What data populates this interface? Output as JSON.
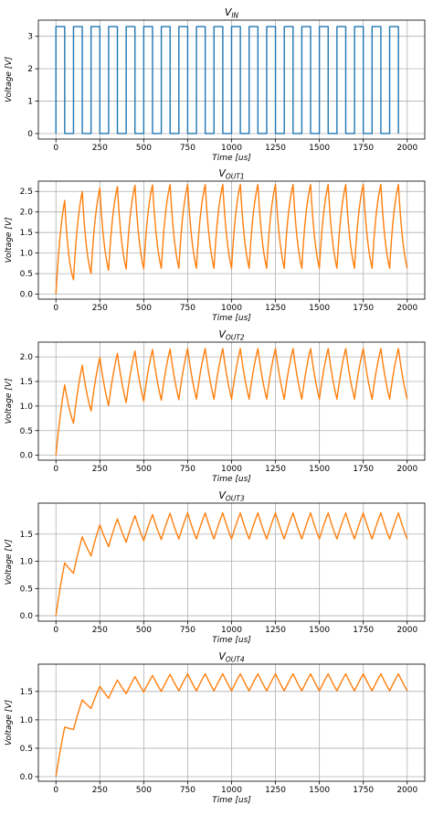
{
  "chart_data": [
    {
      "type": "line",
      "title_main": "V",
      "title_sub": "IN",
      "xlabel": "Time [us]",
      "ylabel": "Voltage [V]",
      "xlim": [
        -100,
        2100
      ],
      "ylim": [
        -0.17,
        3.5
      ],
      "xticks": [
        0,
        250,
        500,
        750,
        1000,
        1250,
        1500,
        1750,
        2000
      ],
      "yticks": [
        0,
        1,
        2,
        3
      ],
      "ytick_labels": [
        "0",
        "1",
        "2",
        "3"
      ],
      "grid": true,
      "series": [
        {
          "color": "#1f77b4",
          "kind": "square",
          "high": 3.3,
          "low": 0,
          "period_us": 100,
          "high_time_us": 50,
          "x_end": 1950
        }
      ]
    },
    {
      "type": "line",
      "title_main": "V",
      "title_sub": "OUT1",
      "xlabel": "Time [us]",
      "ylabel": "Voltage [V]",
      "xlim": [
        -100,
        2100
      ],
      "ylim": [
        -0.12,
        2.75
      ],
      "xticks": [
        0,
        250,
        500,
        750,
        1000,
        1250,
        1500,
        1750,
        2000
      ],
      "yticks": [
        0,
        0.5,
        1.0,
        1.5,
        2.0,
        2.5
      ],
      "ytick_labels": [
        "0.0",
        "0.5",
        "1.0",
        "1.5",
        "2.0",
        "2.5"
      ],
      "grid": true,
      "series": [
        {
          "color": "#ff7f0e",
          "kind": "rc",
          "period_us": 100,
          "high_time_us": 50,
          "vin": 3.3,
          "x_end": 2000,
          "peaks": [
            2.28,
            2.5,
            2.58,
            2.62,
            2.65,
            2.66,
            2.67,
            2.67,
            2.67,
            2.67,
            2.67,
            2.67,
            2.67,
            2.67,
            2.67,
            2.67,
            2.67,
            2.67,
            2.67,
            2.67
          ],
          "troughs": [
            0.35,
            0.5,
            0.58,
            0.61,
            0.62,
            0.63,
            0.63,
            0.63,
            0.63,
            0.63,
            0.63,
            0.63,
            0.63,
            0.63,
            0.63,
            0.63,
            0.63,
            0.63,
            0.63,
            0.63
          ]
        }
      ]
    },
    {
      "type": "line",
      "title_main": "V",
      "title_sub": "OUT2",
      "xlabel": "Time [us]",
      "ylabel": "Voltage [V]",
      "xlim": [
        -100,
        2100
      ],
      "ylim": [
        -0.1,
        2.3
      ],
      "xticks": [
        0,
        250,
        500,
        750,
        1000,
        1250,
        1500,
        1750,
        2000
      ],
      "yticks": [
        0,
        0.5,
        1.0,
        1.5,
        2.0
      ],
      "ytick_labels": [
        "0.0",
        "0.5",
        "1.0",
        "1.5",
        "2.0"
      ],
      "grid": true,
      "series": [
        {
          "color": "#ff7f0e",
          "kind": "rc",
          "period_us": 100,
          "high_time_us": 50,
          "vin": 3.3,
          "x_end": 2000,
          "peaks": [
            1.43,
            1.83,
            1.99,
            2.07,
            2.12,
            2.15,
            2.16,
            2.17,
            2.17,
            2.17,
            2.17,
            2.17,
            2.17,
            2.17,
            2.17,
            2.17,
            2.17,
            2.17,
            2.17,
            2.17
          ],
          "troughs": [
            0.65,
            0.9,
            1.01,
            1.07,
            1.1,
            1.12,
            1.13,
            1.14,
            1.14,
            1.14,
            1.14,
            1.14,
            1.14,
            1.14,
            1.14,
            1.14,
            1.14,
            1.14,
            1.14,
            1.14
          ]
        }
      ]
    },
    {
      "type": "line",
      "title_main": "V",
      "title_sub": "OUT3",
      "xlabel": "Time [us]",
      "ylabel": "Voltage [V]",
      "xlim": [
        -100,
        2100
      ],
      "ylim": [
        -0.1,
        2.07
      ],
      "xticks": [
        0,
        250,
        500,
        750,
        1000,
        1250,
        1500,
        1750,
        2000
      ],
      "yticks": [
        0,
        0.5,
        1.0,
        1.5
      ],
      "ytick_labels": [
        "0.0",
        "0.5",
        "1.0",
        "1.5"
      ],
      "grid": true,
      "series": [
        {
          "color": "#ff7f0e",
          "kind": "rc",
          "period_us": 100,
          "high_time_us": 50,
          "vin": 3.3,
          "x_end": 2000,
          "peaks": [
            0.97,
            1.45,
            1.67,
            1.78,
            1.84,
            1.86,
            1.88,
            1.89,
            1.89,
            1.89,
            1.89,
            1.89,
            1.89,
            1.89,
            1.89,
            1.89,
            1.89,
            1.89,
            1.89,
            1.89
          ],
          "troughs": [
            0.78,
            1.1,
            1.27,
            1.35,
            1.38,
            1.4,
            1.41,
            1.41,
            1.41,
            1.41,
            1.41,
            1.41,
            1.41,
            1.41,
            1.41,
            1.41,
            1.41,
            1.41,
            1.41,
            1.41
          ]
        }
      ]
    },
    {
      "type": "line",
      "title_main": "V",
      "title_sub": "OUT4",
      "xlabel": "Time [us]",
      "ylabel": "Voltage [V]",
      "xlim": [
        -100,
        2100
      ],
      "ylim": [
        -0.08,
        1.98
      ],
      "xticks": [
        0,
        250,
        500,
        750,
        1000,
        1250,
        1500,
        1750,
        2000
      ],
      "yticks": [
        0,
        0.5,
        1.0,
        1.5
      ],
      "ytick_labels": [
        "0.0",
        "0.5",
        "1.0",
        "1.5"
      ],
      "grid": true,
      "series": [
        {
          "color": "#ff7f0e",
          "kind": "rc",
          "period_us": 100,
          "high_time_us": 50,
          "vin": 3.3,
          "x_end": 2000,
          "peaks": [
            0.87,
            1.35,
            1.59,
            1.7,
            1.76,
            1.78,
            1.8,
            1.81,
            1.81,
            1.81,
            1.81,
            1.81,
            1.81,
            1.81,
            1.81,
            1.81,
            1.81,
            1.81,
            1.81,
            1.81
          ],
          "troughs": [
            0.83,
            1.2,
            1.38,
            1.46,
            1.49,
            1.5,
            1.51,
            1.51,
            1.51,
            1.51,
            1.51,
            1.51,
            1.51,
            1.51,
            1.51,
            1.51,
            1.51,
            1.51,
            1.51,
            1.51
          ]
        }
      ]
    }
  ]
}
